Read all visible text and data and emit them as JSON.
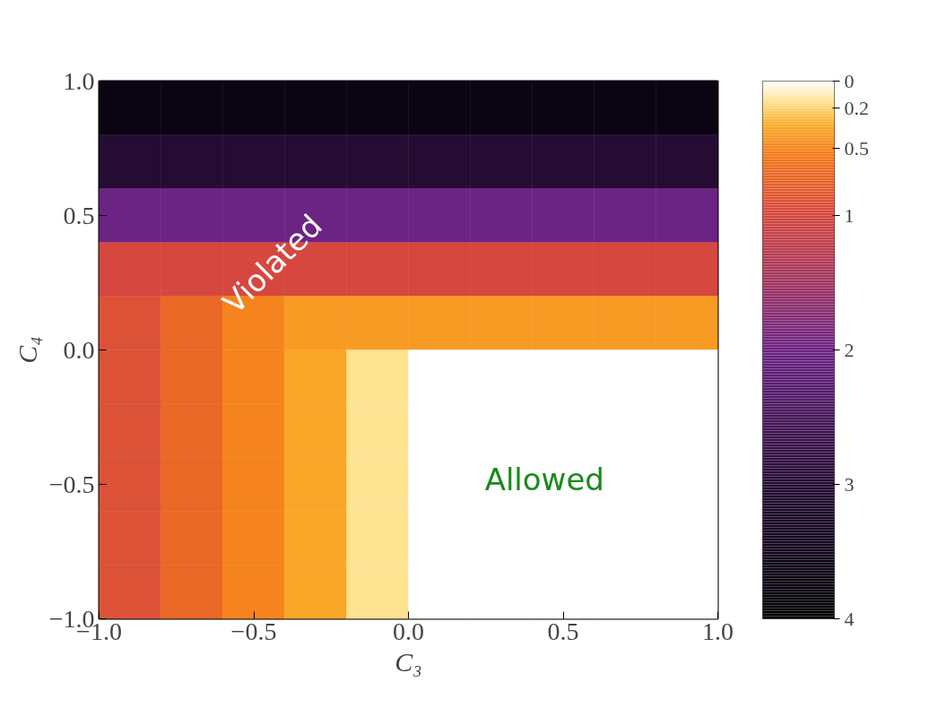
{
  "chart_data": {
    "type": "heatmap",
    "xlabel": "C₃",
    "ylabel": "C₄",
    "xlim": [
      -1.0,
      1.0
    ],
    "ylim": [
      -1.0,
      1.0
    ],
    "xticks": [
      {
        "value": -1.0,
        "label": "−1.0"
      },
      {
        "value": -0.5,
        "label": "−0.5"
      },
      {
        "value": 0.0,
        "label": "0.0"
      },
      {
        "value": 0.5,
        "label": "0.5"
      },
      {
        "value": 1.0,
        "label": "1.0"
      }
    ],
    "yticks": [
      {
        "value": -1.0,
        "label": "−1.0"
      },
      {
        "value": -0.5,
        "label": "−0.5"
      },
      {
        "value": 0.0,
        "label": "0.0"
      },
      {
        "value": 0.5,
        "label": "0.5"
      },
      {
        "value": 1.0,
        "label": "1.0"
      }
    ],
    "x": [
      -0.9,
      -0.7,
      -0.5,
      -0.3,
      -0.1,
      0.1,
      0.3,
      0.5,
      0.7,
      0.9
    ],
    "y": [
      0.9,
      0.7,
      0.5,
      0.3,
      0.1,
      -0.1,
      -0.3,
      -0.5,
      -0.7,
      -0.9
    ],
    "cells": [
      [
        3.7,
        3.7,
        3.7,
        3.7,
        3.7,
        3.7,
        3.7,
        3.7,
        3.7,
        3.7
      ],
      [
        3.0,
        3.0,
        3.0,
        3.0,
        3.0,
        3.0,
        3.0,
        3.0,
        3.0,
        3.0
      ],
      [
        2.0,
        2.0,
        2.0,
        2.0,
        2.0,
        2.0,
        2.0,
        2.0,
        2.0,
        2.0
      ],
      [
        1.0,
        1.0,
        1.0,
        1.0,
        1.0,
        1.0,
        1.0,
        1.0,
        1.0,
        1.0
      ],
      [
        0.9,
        0.7,
        0.5,
        0.4,
        0.4,
        0.4,
        0.4,
        0.4,
        0.4,
        0.4
      ],
      [
        0.9,
        0.7,
        0.5,
        0.35,
        0.15,
        0,
        0,
        0,
        0,
        0
      ],
      [
        0.9,
        0.7,
        0.5,
        0.35,
        0.15,
        0,
        0,
        0,
        0,
        0
      ],
      [
        0.9,
        0.7,
        0.5,
        0.35,
        0.15,
        0,
        0,
        0,
        0,
        0
      ],
      [
        0.9,
        0.7,
        0.5,
        0.35,
        0.15,
        0,
        0,
        0,
        0,
        0
      ],
      [
        0.9,
        0.7,
        0.5,
        0.35,
        0.15,
        0,
        0,
        0,
        0,
        0
      ]
    ],
    "clim": [
      0,
      4
    ],
    "cticks": [
      0,
      0.2,
      0.5,
      1,
      2,
      3,
      4
    ],
    "annotations": [
      "Violated",
      "Allowed"
    ]
  }
}
